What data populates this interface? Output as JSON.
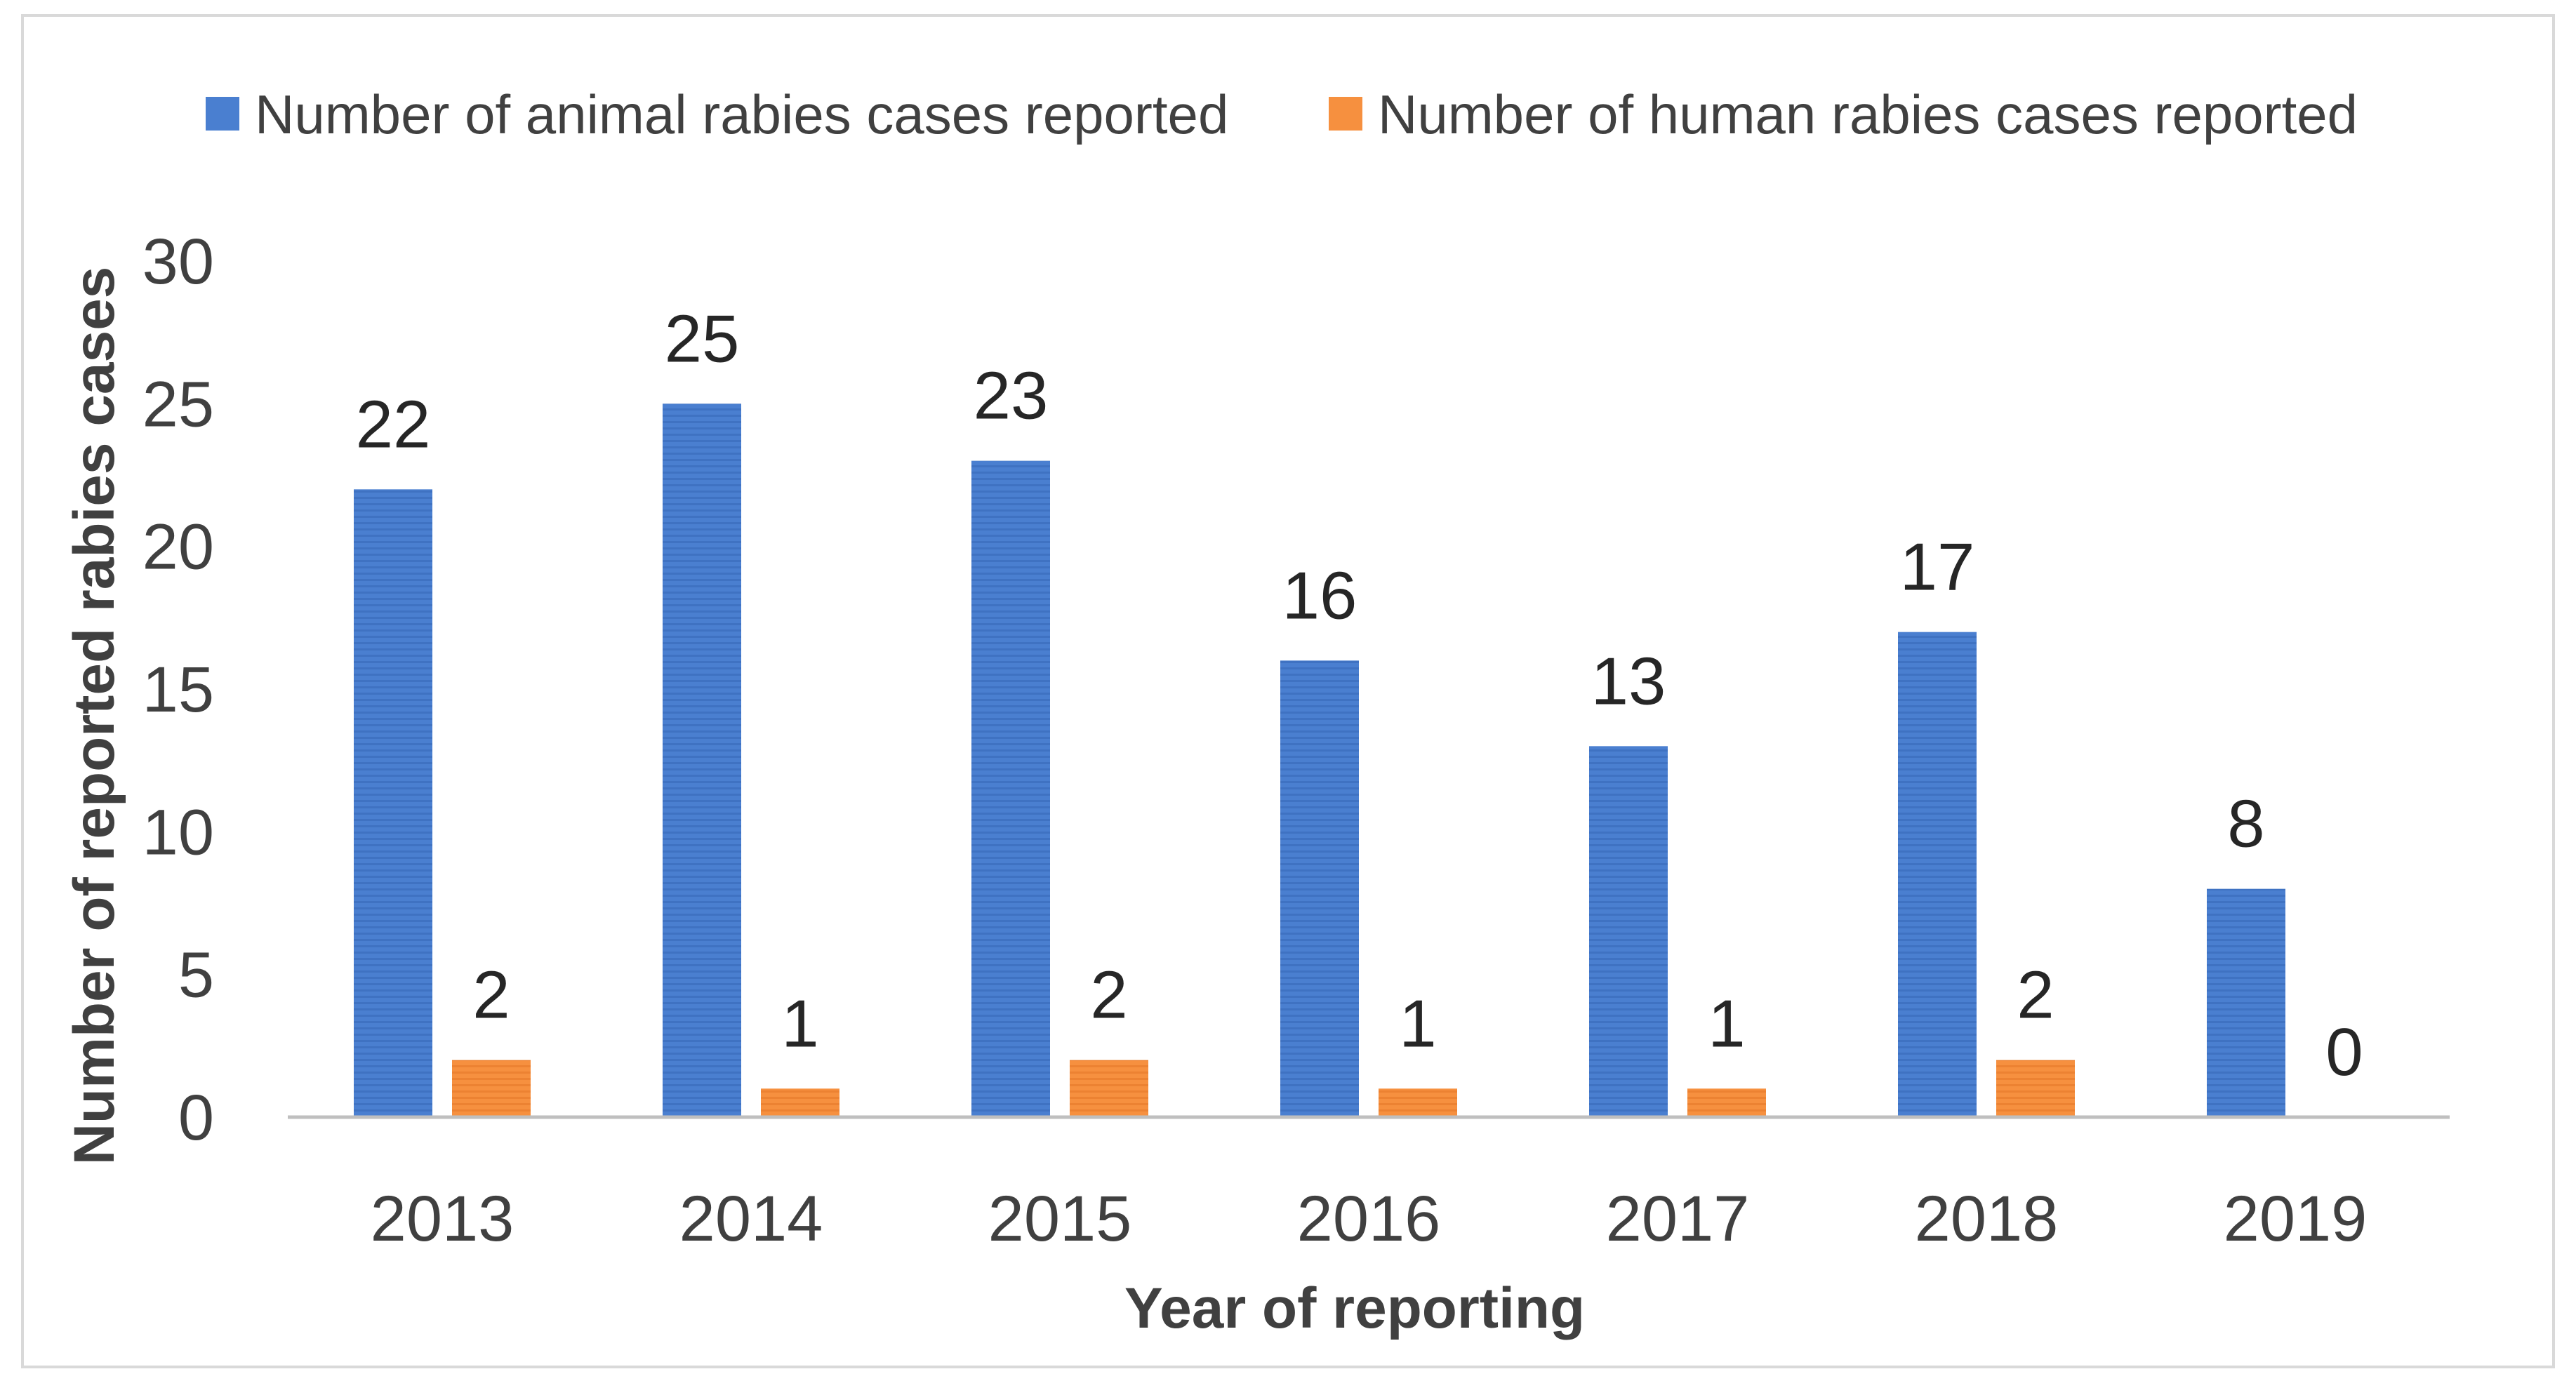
{
  "chart_data": {
    "type": "bar",
    "categories": [
      "2013",
      "2014",
      "2015",
      "2016",
      "2017",
      "2018",
      "2019"
    ],
    "series": [
      {
        "name": "Number of animal rabies cases reported",
        "values": [
          22,
          25,
          23,
          16,
          13,
          17,
          8
        ],
        "color": "#4a7fd0"
      },
      {
        "name": "Number of human rabies cases reported",
        "values": [
          2,
          1,
          2,
          1,
          1,
          2,
          0
        ],
        "color": "#f6903f"
      }
    ],
    "title": "",
    "xlabel": "Year of reporting",
    "ylabel": "Number of reported rabies cases",
    "ylim": [
      0,
      30
    ],
    "yticks": [
      0,
      5,
      10,
      15,
      20,
      25,
      30
    ],
    "data_labels": true,
    "legend_position": "top",
    "grid": false
  }
}
